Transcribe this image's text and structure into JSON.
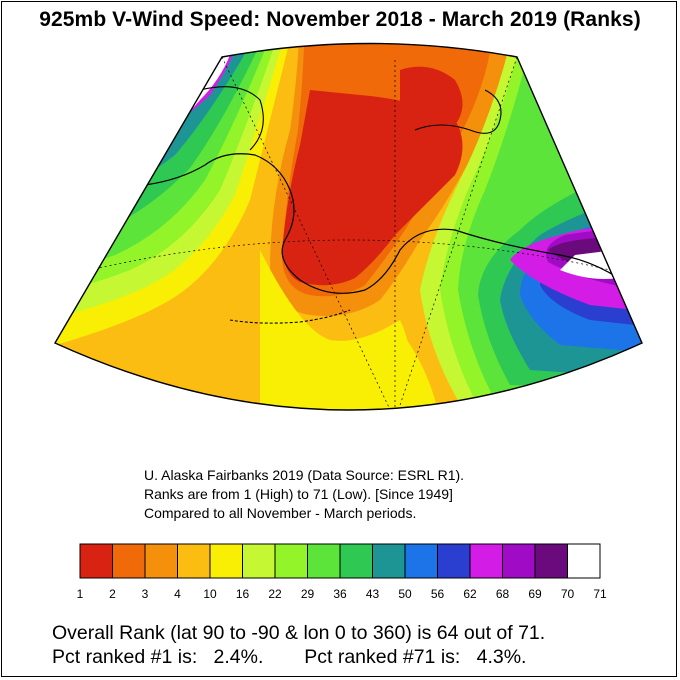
{
  "title": "925mb V-Wind Speed: November 2018 - March 2019 (Ranks)",
  "notes": {
    "line1": "U. Alaska Fairbanks 2019 (Data Source: ESRL R1).",
    "line2": "Ranks are from 1 (High) to 71 (Low). [Since 1949]",
    "line3": "Compared to all November - March periods."
  },
  "legend": {
    "colors": [
      "#d92312",
      "#f06a0a",
      "#f5900c",
      "#fbbd11",
      "#f8ef05",
      "#c5f832",
      "#93f429",
      "#5ce43a",
      "#2ec853",
      "#1e9595",
      "#1d73e8",
      "#2a3ed0",
      "#d31de6",
      "#a00cc5",
      "#6a0a7c",
      "#ffffff"
    ],
    "labels": [
      "1",
      "2",
      "3",
      "4",
      "10",
      "16",
      "22",
      "29",
      "36",
      "43",
      "50",
      "56",
      "62",
      "68",
      "69",
      "70",
      "71"
    ]
  },
  "stats": {
    "overall": "Overall Rank (lat 90 to -90 & lon 0 to 360) is 64 out of 71.",
    "pct1_label": "Pct ranked #1 is:",
    "pct1_value": "2.4%.",
    "pct71_label": "Pct ranked #71 is:",
    "pct71_value": "4.3%."
  },
  "map": {
    "region": "Alaska and North Pacific",
    "band_colors": {
      "red": "#d92312",
      "orange": "#f06a0a",
      "amber": "#f5900c",
      "gold": "#fbbd11",
      "yellow": "#f8ef05",
      "lime": "#c5f832",
      "green": "#93f429",
      "green2": "#5ce43a",
      "teal": "#2ec853",
      "cyan": "#1e9595",
      "blue": "#1d73e8",
      "indigo": "#2a3ed0",
      "magenta": "#d31de6",
      "purple": "#a00cc5",
      "darkpurple": "#6a0a7c"
    }
  }
}
